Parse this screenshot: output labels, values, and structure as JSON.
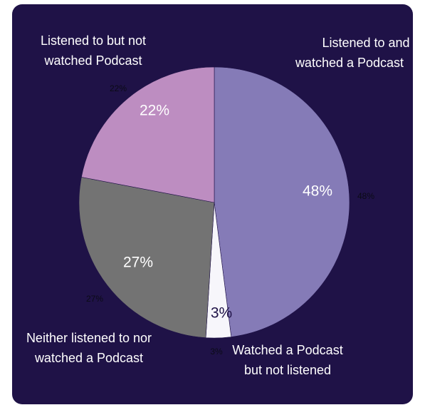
{
  "chart_data": {
    "type": "pie",
    "title": "",
    "start_angle_deg": 0,
    "direction": "clockwise",
    "slices": [
      {
        "label": [
          "Listened to and",
          "watched a Podcast"
        ],
        "value": 48,
        "inside_label": "48%",
        "outside_label": "48%",
        "color": "#857bb7",
        "inside_text_color": "#ffffff"
      },
      {
        "label": [
          "Watched a Podcast",
          "but not listened"
        ],
        "value": 3,
        "inside_label": "3%",
        "outside_label": "3%",
        "color": "#f7f6fb",
        "inside_text_color": "#1f1247"
      },
      {
        "label": [
          "Neither listened to nor",
          "watched a Podcast"
        ],
        "value": 27,
        "inside_label": "27%",
        "outside_label": "27%",
        "color": "#737373",
        "inside_text_color": "#ffffff"
      },
      {
        "label": [
          "Listened to but not",
          "watched Podcast"
        ],
        "value": 22,
        "inside_label": "22%",
        "outside_label": "22%",
        "color": "#bd8dc1",
        "inside_text_color": "#ffffff"
      }
    ]
  },
  "colors": {
    "card_background": "#1f1247",
    "category_text": "#ffffff",
    "outside_percent_text": "#0b0b16",
    "slice_border": "#1f1247"
  }
}
